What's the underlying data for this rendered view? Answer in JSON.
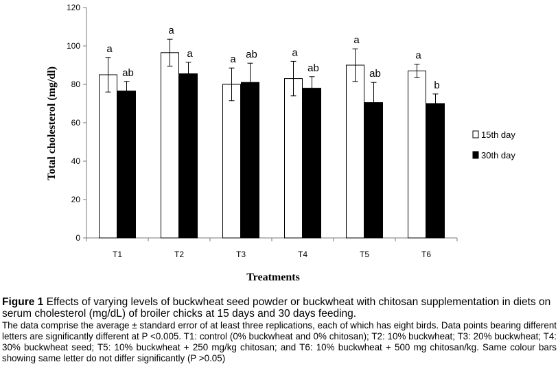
{
  "chart_data": {
    "type": "bar",
    "categories": [
      "T1",
      "T2",
      "T3",
      "T4",
      "T5",
      "T6"
    ],
    "series": [
      {
        "name": "15th day",
        "color": "#ffffff",
        "values": [
          85,
          96.5,
          80,
          83,
          90,
          87
        ],
        "errors": [
          9,
          7,
          8.5,
          9,
          8.5,
          3.5
        ],
        "letters": [
          "a",
          "a",
          "a",
          "a",
          "a",
          "a"
        ]
      },
      {
        "name": "30th day",
        "color": "#000000",
        "values": [
          76.5,
          85.5,
          81,
          78,
          70.5,
          70
        ],
        "errors": [
          5,
          6,
          10,
          6,
          10.5,
          5
        ],
        "letters": [
          "ab",
          "a",
          "ab",
          "ab",
          "ab",
          "b"
        ]
      }
    ],
    "ylabel": "Total cholesterol (mg/dl)",
    "xlabel": "Treatments",
    "ylim": [
      0,
      120
    ],
    "yticks": [
      "0",
      "20",
      "40",
      "60",
      "80",
      "100",
      "120"
    ],
    "legend_position": "right",
    "grid": false
  },
  "caption": {
    "figure_label": "Figure 1",
    "title": "Effects of varying levels of buckwheat seed powder or buckwheat with chitosan supplementation in diets on serum cholesterol (mg/dL) of broiler chicks at 15 days and 30 days feeding.",
    "notes": "The data comprise the average ± standard error of at least three replications, each of which has eight birds. Data points bearing different letters are significantly different at P <0.005. T1: control (0% buckwheat and 0% chitosan); T2: 10% buckwheat; T3: 20% buckwheat; T4: 30% buckwheat seed; T5: 10% buckwheat + 250 mg/kg chitosan; and T6: 10% buckwheat + 500 mg chitosan/kg. Same colour bars showing same letter do not differ significantly (P >0.05)"
  }
}
